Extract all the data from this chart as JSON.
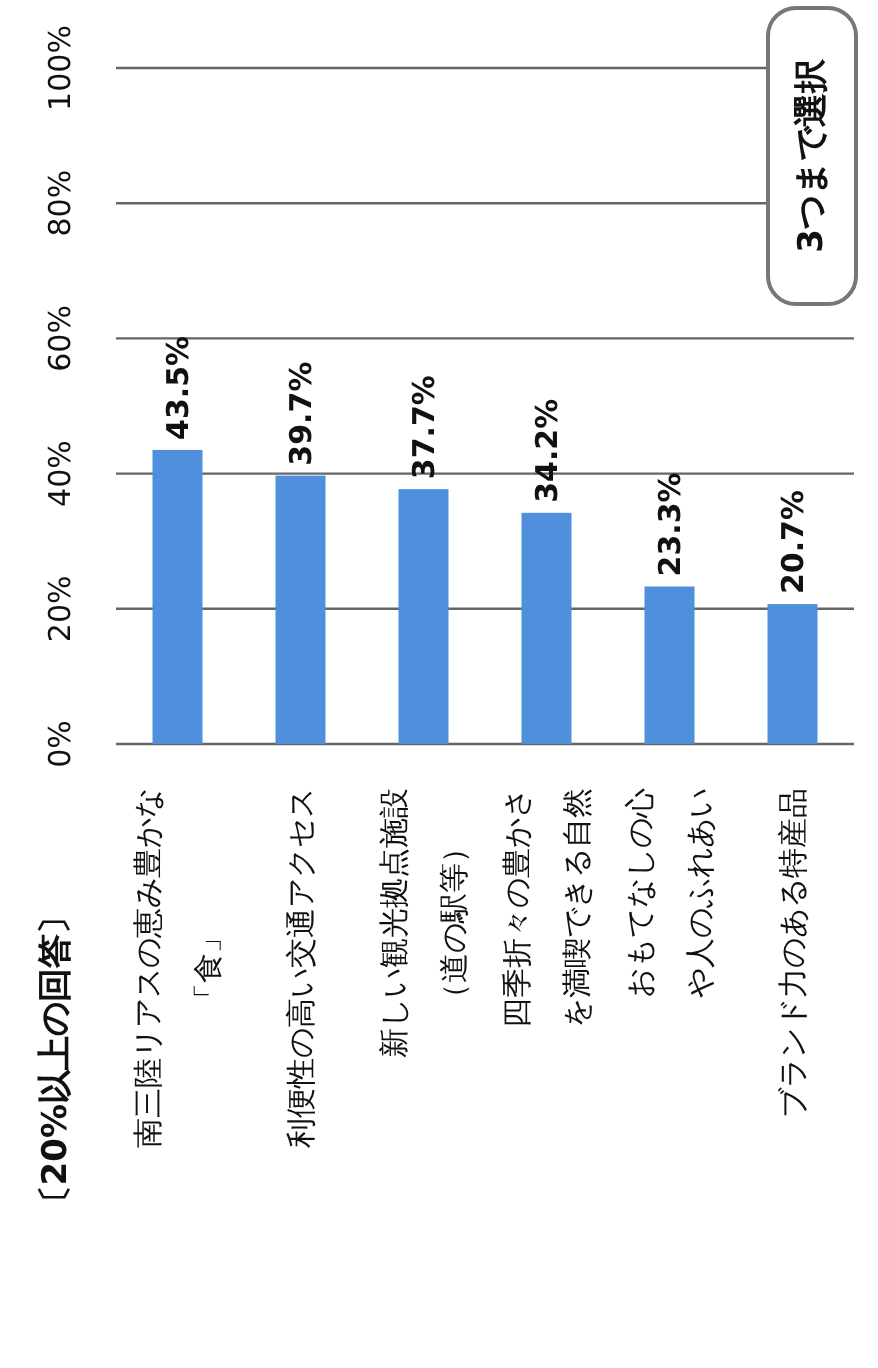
{
  "chart_data": {
    "type": "bar",
    "title": "〔20%以上の回答〕",
    "annotations": [
      "3つまで選択"
    ],
    "categories": [
      "南三陸リアスの恵み豊かな「食」",
      "利便性の高い交通アクセス",
      "新しい観光拠点施設（道の駅等）",
      "四季折々の豊かさを満喫できる自然",
      "おもてなしの心や人のふれあい",
      "ブランド力のある特産品"
    ],
    "values": [
      43.5,
      39.7,
      37.7,
      34.2,
      23.3,
      20.7
    ],
    "color": "#4f8fdb",
    "ylim": [
      0,
      100
    ],
    "yticks": [
      {
        "value": 0,
        "label": "0%"
      },
      {
        "value": 20,
        "label": "20%"
      },
      {
        "value": 40,
        "label": "40%"
      },
      {
        "value": 60,
        "label": "60%"
      },
      {
        "value": 80,
        "label": "80%"
      },
      {
        "value": 100,
        "label": "100%"
      }
    ],
    "value_labels": [
      "43.5%",
      "39.7%",
      "37.7%",
      "34.2%",
      "23.3%",
      "20.7%"
    ],
    "grid": "y"
  }
}
